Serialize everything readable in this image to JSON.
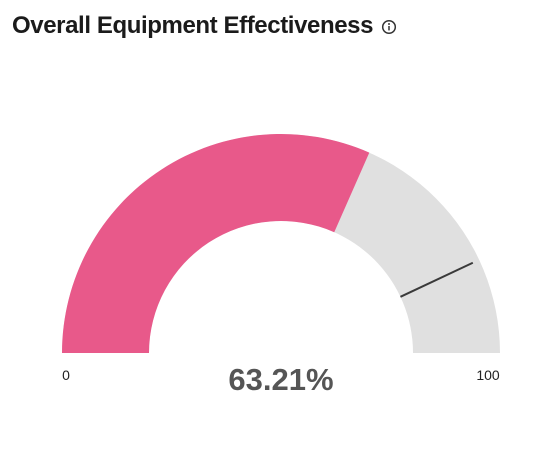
{
  "widget": {
    "title": "Overall Equipment Effectiveness",
    "info_icon": "info-icon"
  },
  "chart_data": {
    "type": "gauge",
    "min": 0,
    "max": 100,
    "value": 63.21,
    "value_label": "63.21%",
    "target": 86,
    "min_label": "0",
    "max_label": "100",
    "colors": {
      "value_fill": "#e8598a",
      "track_fill": "#e0e0e0",
      "target_line": "#3a3a3a",
      "value_text": "#555555"
    }
  }
}
